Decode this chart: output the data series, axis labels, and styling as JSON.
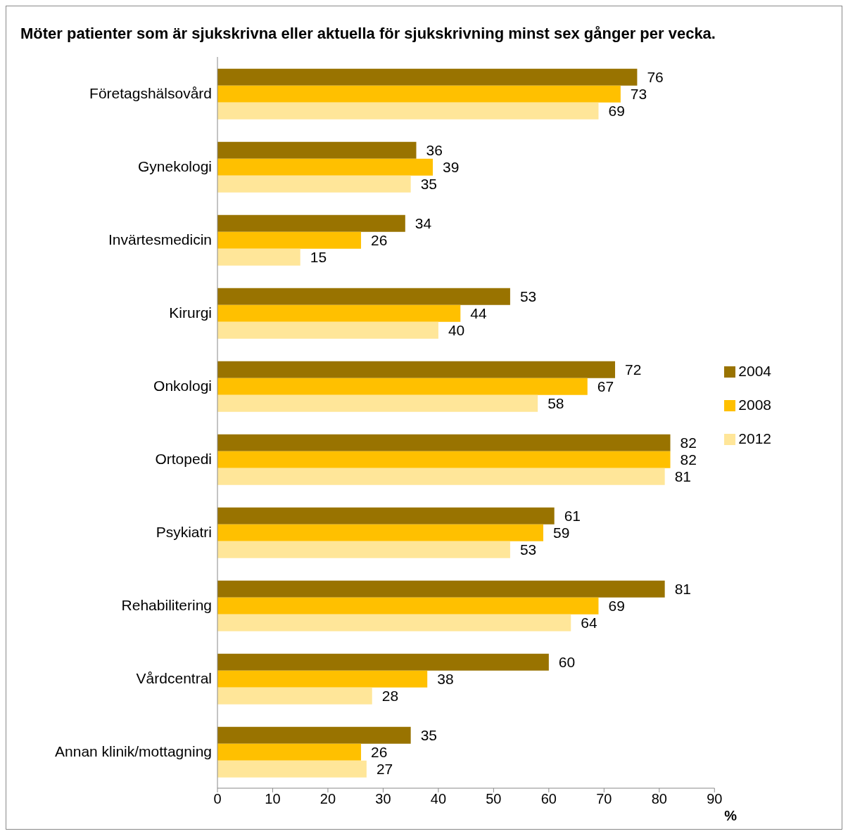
{
  "chart_data": {
    "type": "bar",
    "orientation": "horizontal",
    "title": "Möter patienter som är sjukskrivna eller aktuella för sjukskrivning minst sex gånger per vecka.",
    "xlabel": "%",
    "categories": [
      "Företagshälsovård",
      "Gynekologi",
      "Invärtesmedicin",
      "Kirurgi",
      "Onkologi",
      "Ortopedi",
      "Psykiatri",
      "Rehabilitering",
      "Vårdcentral",
      "Annan klinik/mottagning"
    ],
    "series": [
      {
        "name": "2004",
        "color": "#997300",
        "values": [
          76,
          36,
          34,
          53,
          72,
          82,
          61,
          81,
          60,
          35
        ]
      },
      {
        "name": "2008",
        "color": "#ffc000",
        "values": [
          73,
          39,
          26,
          44,
          67,
          82,
          59,
          69,
          38,
          26
        ]
      },
      {
        "name": "2012",
        "color": "#ffe699",
        "values": [
          69,
          35,
          15,
          40,
          58,
          81,
          53,
          64,
          28,
          27
        ]
      }
    ],
    "xlim": [
      0,
      90
    ],
    "xticks": [
      0,
      10,
      20,
      30,
      40,
      50,
      60,
      70,
      80,
      90
    ],
    "data_labels": true,
    "grid": false,
    "legend": "right"
  }
}
